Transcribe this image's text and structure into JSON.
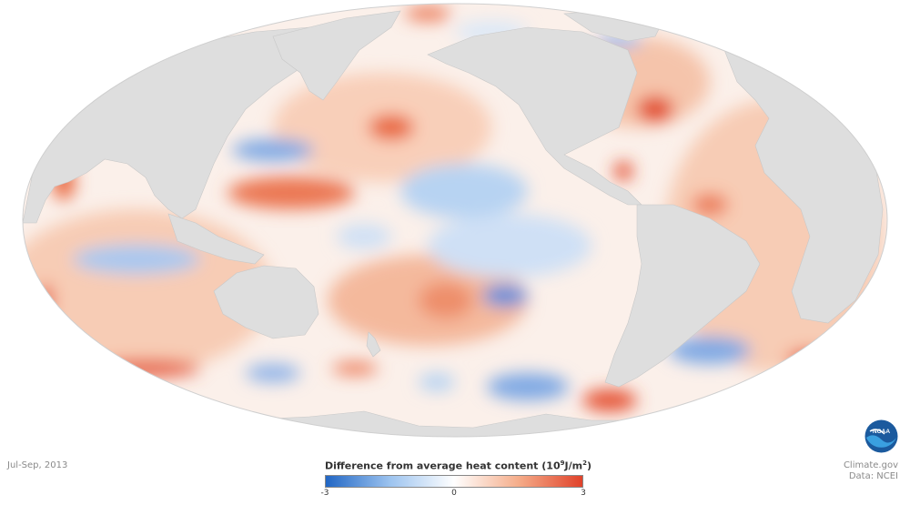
{
  "date_label": "Jul-Sep, 2013",
  "legend": {
    "title_main": "Difference from average heat content (10",
    "title_sup1": "9",
    "title_mid": "J/m",
    "title_sup2": "2",
    "title_end": ")",
    "ticks": [
      "-3",
      "0",
      "3"
    ],
    "colors": {
      "negative": "#2166c4",
      "mid_negative": "#9cc3ef",
      "neutral": "#ffffff",
      "mid_positive": "#f5ad8a",
      "positive": "#e0422a"
    }
  },
  "credits": {
    "site": "Climate.gov",
    "source": "Data: NCEI"
  },
  "logo": {
    "text": "NOAA",
    "icon": "noaa-logo-icon"
  },
  "map": {
    "land_color": "#dedede",
    "projection": "mollweide"
  }
}
